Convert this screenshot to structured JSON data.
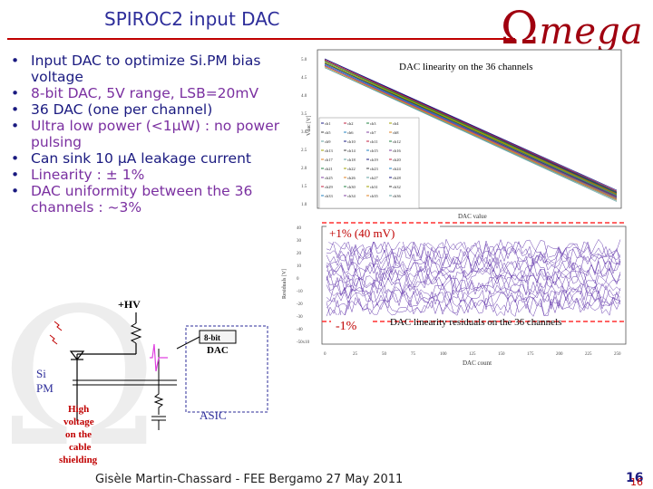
{
  "slide": {
    "title": "SPIROC2 input DAC",
    "logo_initial": "Ω",
    "logo_rest": "mega",
    "footer": "Gisèle Martin-Chassard  - FEE  Bergamo 27 May 2011",
    "page_number": "16",
    "page_number_overlay": "16"
  },
  "bullets": [
    {
      "text": "Input DAC to optimize Si.PM bias voltage",
      "color": "blue"
    },
    {
      "text": "8-bit DAC, 5V range, LSB=20mV",
      "color": "purple"
    },
    {
      "text": "36 DAC (one per channel)",
      "color": "blue"
    },
    {
      "text": "Ultra low power  (<1µW) : no power pulsing",
      "color": "purple"
    },
    {
      "text": "Can sink 10 µA leakage current",
      "color": "blue"
    },
    {
      "text": "Linearity : ± 1%",
      "color": "purple"
    },
    {
      "text": "DAC uniformity between the 36 channels : ~3%",
      "color": "purple"
    }
  ],
  "bullet_glyph": "•",
  "plots": {
    "top_title": "DAC linearity on the 36 channels",
    "top_ylabel": "Vdac [V]",
    "top_xlabel": "DAC value",
    "top_yticks": [
      "5.0",
      "4.5",
      "4.0",
      "3.5",
      "3.0",
      "2.5",
      "2.0",
      "1.5",
      "1.0"
    ],
    "legend": [
      "ch1",
      "ch2",
      "ch3",
      "ch4",
      "ch5",
      "ch6",
      "ch7",
      "ch8",
      "ch9",
      "ch10",
      "ch11",
      "ch12",
      "ch13",
      "ch14",
      "ch15",
      "ch16",
      "ch17",
      "ch18",
      "ch19",
      "ch20",
      "ch21",
      "ch22",
      "ch23",
      "ch24",
      "ch25",
      "ch26",
      "ch27",
      "ch28",
      "ch29",
      "ch30",
      "ch31",
      "ch32",
      "ch33",
      "ch34",
      "ch35",
      "ch36"
    ],
    "upper_limit": "+1% (40 mV)",
    "lower_limit": "-1%",
    "bottom_title": "DAC linearity residuals on the 36 channels",
    "bottom_ylabel": "Residuals [V]",
    "bottom_xlabel": "DAC count",
    "bottom_yticks": [
      "40",
      "30",
      "20",
      "10",
      "0",
      "-10",
      "-20",
      "-30",
      "-40",
      "-50x10"
    ],
    "xticks": [
      "0",
      "25",
      "50",
      "75",
      "100",
      "125",
      "150",
      "175",
      "200",
      "225",
      "250"
    ]
  },
  "schematic": {
    "hv_label": "+HV",
    "sipm_label_1": "Si",
    "sipm_label_2": "PM",
    "dac_box": "8-bit",
    "dac_label": "DAC",
    "asic_label": "ASIC",
    "note": [
      "High",
      "voltage",
      "on the",
      "cable",
      "shielding"
    ]
  },
  "colors": {
    "title": "#2d2d9a",
    "rule": "#c00000",
    "blue_text": "#1a1a80",
    "purple_text": "#7a2fa0",
    "residual_traces": "#6a3fb0",
    "limit_line": "#ff3030"
  }
}
